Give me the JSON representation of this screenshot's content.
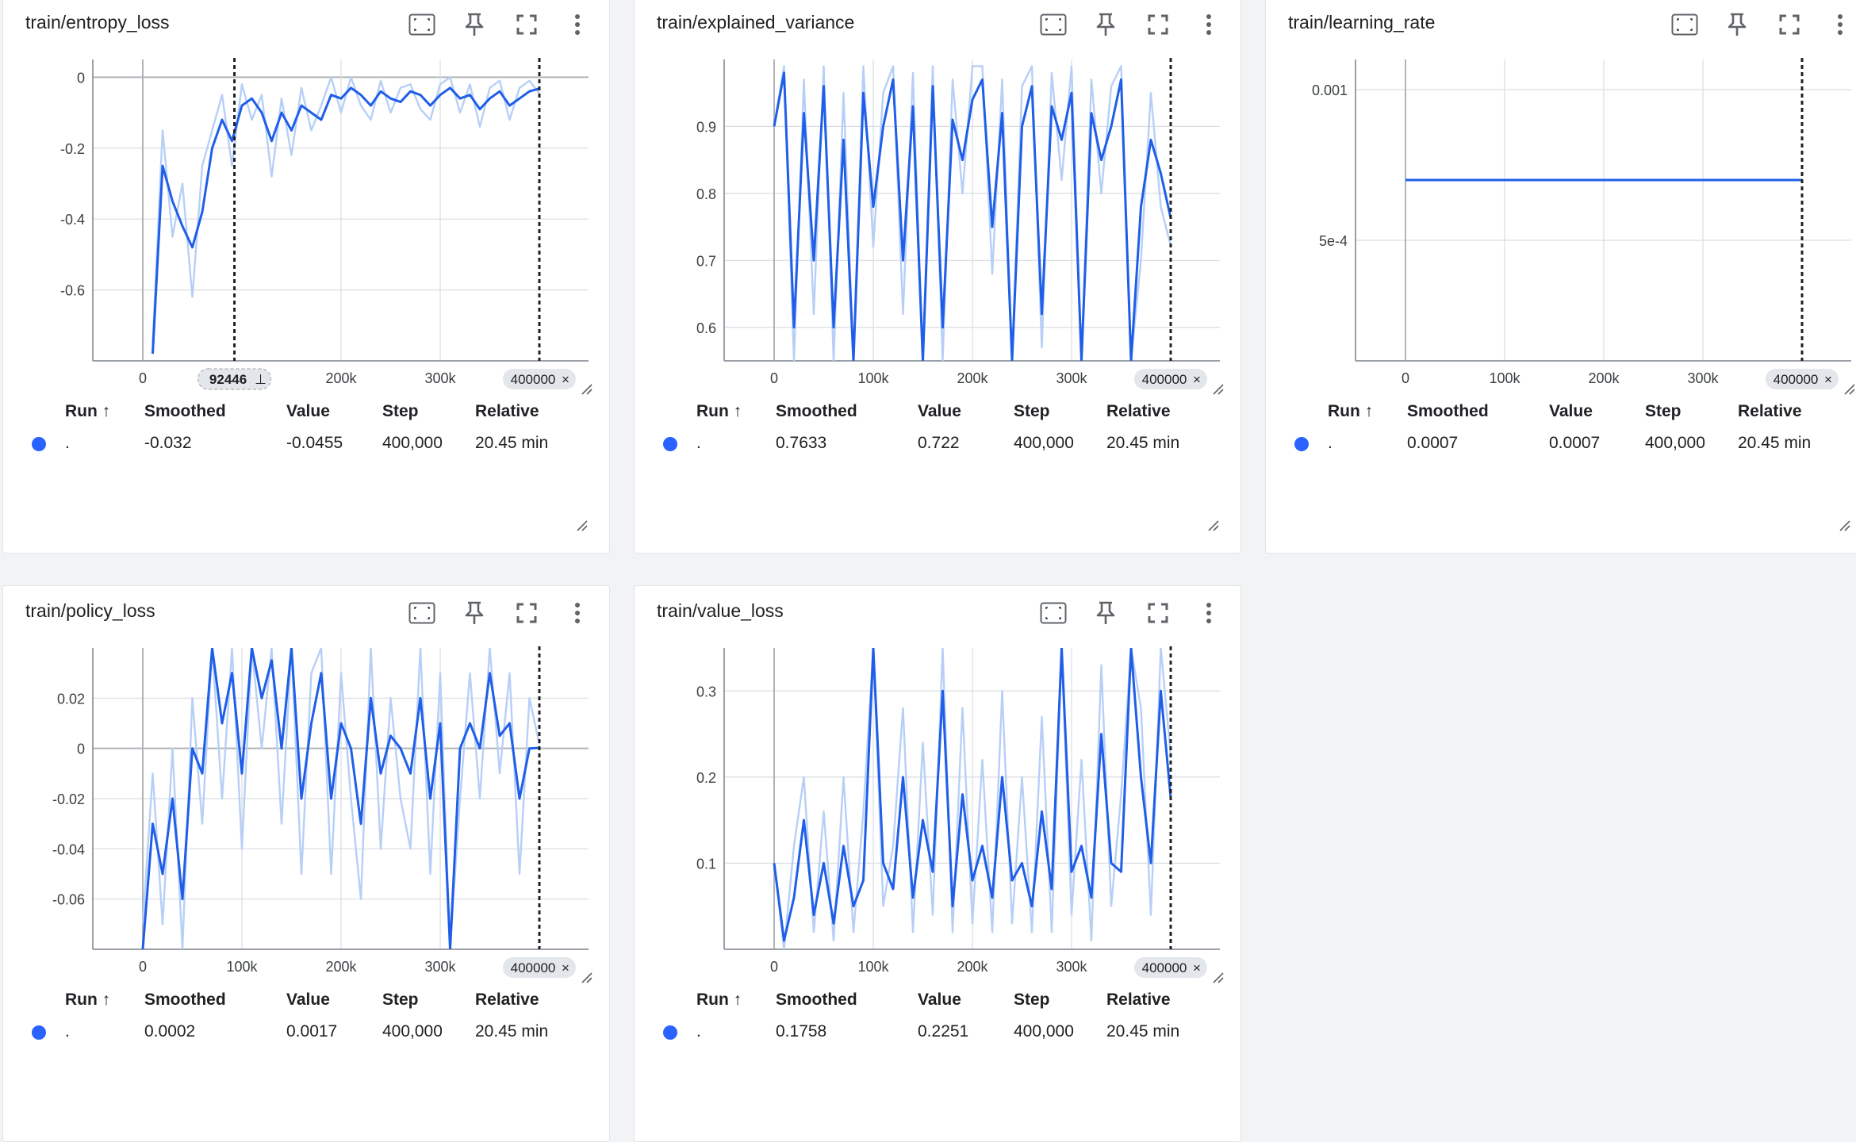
{
  "colors": {
    "smoothed": "#1f5ee8",
    "raw": "#b7cff7",
    "grid": "#dadce0",
    "axis": "#9aa0a6",
    "chip_bg": "#e3e6ea"
  },
  "table_headers": {
    "run": "Run ↑",
    "smoothed": "Smoothed",
    "value": "Value",
    "step": "Step",
    "relative": "Relative"
  },
  "icons": [
    "fit-domain-icon",
    "pin-icon",
    "fullscreen-icon",
    "more-vert-icon",
    "resize-handle-icon"
  ],
  "cards": [
    {
      "title": "train/entropy_loss",
      "row": {
        "run": ".",
        "smoothed": "-0.032",
        "value": "-0.0455",
        "step": "400,000",
        "relative": "20.45 min"
      },
      "x_ticks": [
        {
          "v": 0,
          "label": "0"
        },
        {
          "v": 200000,
          "label": "200k"
        },
        {
          "v": 300000,
          "label": "300k"
        }
      ],
      "y_ticks": [
        {
          "v": 0,
          "label": "0"
        },
        {
          "v": -0.2,
          "label": "-0.2"
        },
        {
          "v": -0.4,
          "label": "-0.4"
        },
        {
          "v": -0.6,
          "label": "-0.6"
        }
      ],
      "markers": [
        {
          "step": 92446,
          "label": "92446",
          "kind": "pin"
        },
        {
          "step": 400000,
          "label": "400000",
          "kind": "close"
        }
      ]
    },
    {
      "title": "train/explained_variance",
      "row": {
        "run": ".",
        "smoothed": "0.7633",
        "value": "0.722",
        "step": "400,000",
        "relative": "20.45 min"
      },
      "x_ticks": [
        {
          "v": 0,
          "label": "0"
        },
        {
          "v": 100000,
          "label": "100k"
        },
        {
          "v": 200000,
          "label": "200k"
        },
        {
          "v": 300000,
          "label": "300k"
        }
      ],
      "y_ticks": [
        {
          "v": 0.9,
          "label": "0.9"
        },
        {
          "v": 0.8,
          "label": "0.8"
        },
        {
          "v": 0.7,
          "label": "0.7"
        },
        {
          "v": 0.6,
          "label": "0.6"
        }
      ],
      "markers": [
        {
          "step": 400000,
          "label": "400000",
          "kind": "close"
        }
      ]
    },
    {
      "title": "train/learning_rate",
      "row": {
        "run": ".",
        "smoothed": "0.0007",
        "value": "0.0007",
        "step": "400,000",
        "relative": "20.45 min"
      },
      "x_ticks": [
        {
          "v": 0,
          "label": "0"
        },
        {
          "v": 100000,
          "label": "100k"
        },
        {
          "v": 200000,
          "label": "200k"
        },
        {
          "v": 300000,
          "label": "300k"
        }
      ],
      "y_ticks": [
        {
          "v": 0.001,
          "label": "0.001"
        },
        {
          "v": 0.0005,
          "label": "5e-4"
        }
      ],
      "markers": [
        {
          "step": 400000,
          "label": "400000",
          "kind": "close"
        }
      ]
    },
    {
      "title": "train/policy_loss",
      "row": {
        "run": ".",
        "smoothed": "0.0002",
        "value": "0.0017",
        "step": "400,000",
        "relative": "20.45 min"
      },
      "x_ticks": [
        {
          "v": 0,
          "label": "0"
        },
        {
          "v": 100000,
          "label": "100k"
        },
        {
          "v": 200000,
          "label": "200k"
        },
        {
          "v": 300000,
          "label": "300k"
        }
      ],
      "y_ticks": [
        {
          "v": 0.02,
          "label": "0.02"
        },
        {
          "v": 0,
          "label": "0"
        },
        {
          "v": -0.02,
          "label": "-0.02"
        },
        {
          "v": -0.04,
          "label": "-0.04"
        },
        {
          "v": -0.06,
          "label": "-0.06"
        }
      ],
      "markers": [
        {
          "step": 400000,
          "label": "400000",
          "kind": "close"
        }
      ]
    },
    {
      "title": "train/value_loss",
      "row": {
        "run": ".",
        "smoothed": "0.1758",
        "value": "0.2251",
        "step": "400,000",
        "relative": "20.45 min"
      },
      "x_ticks": [
        {
          "v": 0,
          "label": "0"
        },
        {
          "v": 100000,
          "label": "100k"
        },
        {
          "v": 200000,
          "label": "200k"
        },
        {
          "v": 300000,
          "label": "300k"
        }
      ],
      "y_ticks": [
        {
          "v": 0.3,
          "label": "0.3"
        },
        {
          "v": 0.2,
          "label": "0.2"
        },
        {
          "v": 0.1,
          "label": "0.1"
        }
      ],
      "markers": [
        {
          "step": 400000,
          "label": "400000",
          "kind": "close"
        }
      ]
    }
  ],
  "chart_data": [
    {
      "type": "line",
      "title": "train/entropy_loss",
      "ylim": [
        -0.8,
        0.05
      ],
      "x": [
        10000,
        20000,
        30000,
        40000,
        50000,
        60000,
        70000,
        80000,
        90000,
        100000,
        110000,
        120000,
        130000,
        140000,
        150000,
        160000,
        170000,
        180000,
        190000,
        200000,
        210000,
        220000,
        230000,
        240000,
        250000,
        260000,
        270000,
        280000,
        290000,
        300000,
        310000,
        320000,
        330000,
        340000,
        350000,
        360000,
        370000,
        380000,
        390000,
        400000
      ],
      "series": [
        {
          "name": "smoothed",
          "values": [
            -0.78,
            -0.25,
            -0.35,
            -0.42,
            -0.48,
            -0.38,
            -0.2,
            -0.12,
            -0.18,
            -0.08,
            -0.06,
            -0.1,
            -0.18,
            -0.1,
            -0.15,
            -0.08,
            -0.1,
            -0.12,
            -0.05,
            -0.06,
            -0.03,
            -0.05,
            -0.08,
            -0.04,
            -0.06,
            -0.07,
            -0.04,
            -0.05,
            -0.08,
            -0.05,
            -0.03,
            -0.06,
            -0.05,
            -0.09,
            -0.06,
            -0.04,
            -0.08,
            -0.06,
            -0.04,
            -0.032
          ]
        },
        {
          "name": "raw",
          "values": [
            -0.75,
            -0.15,
            -0.45,
            -0.3,
            -0.62,
            -0.25,
            -0.15,
            -0.05,
            -0.25,
            -0.02,
            -0.12,
            -0.05,
            -0.28,
            -0.06,
            -0.22,
            -0.03,
            -0.15,
            -0.08,
            0.0,
            -0.1,
            0.0,
            -0.08,
            -0.12,
            -0.01,
            -0.1,
            -0.03,
            -0.02,
            -0.09,
            -0.12,
            -0.02,
            0.0,
            -0.1,
            -0.02,
            -0.14,
            -0.03,
            -0.01,
            -0.12,
            -0.03,
            -0.01,
            -0.0455
          ]
        }
      ]
    },
    {
      "type": "line",
      "title": "train/explained_variance",
      "ylim": [
        0.55,
        1.0
      ],
      "x": [
        0,
        10000,
        20000,
        30000,
        40000,
        50000,
        60000,
        70000,
        80000,
        90000,
        100000,
        110000,
        120000,
        130000,
        140000,
        150000,
        160000,
        170000,
        180000,
        190000,
        200000,
        210000,
        220000,
        230000,
        240000,
        250000,
        260000,
        270000,
        280000,
        290000,
        300000,
        310000,
        320000,
        330000,
        340000,
        350000,
        360000,
        370000,
        380000,
        390000,
        400000
      ],
      "series": [
        {
          "name": "smoothed",
          "values": [
            0.9,
            0.98,
            0.6,
            0.92,
            0.7,
            0.96,
            0.6,
            0.88,
            0.55,
            0.95,
            0.78,
            0.9,
            0.97,
            0.7,
            0.93,
            0.55,
            0.96,
            0.6,
            0.91,
            0.85,
            0.94,
            0.97,
            0.75,
            0.92,
            0.55,
            0.9,
            0.96,
            0.62,
            0.93,
            0.88,
            0.95,
            0.55,
            0.92,
            0.85,
            0.9,
            0.97,
            0.55,
            0.78,
            0.88,
            0.83,
            0.7633
          ]
        },
        {
          "name": "raw",
          "values": [
            0.9,
            0.99,
            0.55,
            0.97,
            0.62,
            0.99,
            0.55,
            0.95,
            0.55,
            0.99,
            0.72,
            0.95,
            0.99,
            0.62,
            0.98,
            0.55,
            0.99,
            0.55,
            0.97,
            0.8,
            0.99,
            0.99,
            0.68,
            0.97,
            0.55,
            0.96,
            0.99,
            0.57,
            0.98,
            0.82,
            0.99,
            0.55,
            0.97,
            0.8,
            0.96,
            0.99,
            0.55,
            0.7,
            0.95,
            0.78,
            0.722
          ]
        }
      ]
    },
    {
      "type": "line",
      "title": "train/learning_rate",
      "ylim": [
        0.0001,
        0.0011
      ],
      "x": [
        0,
        400000
      ],
      "series": [
        {
          "name": "smoothed",
          "values": [
            0.0007,
            0.0007
          ]
        },
        {
          "name": "raw",
          "values": [
            0.0007,
            0.0007
          ]
        }
      ]
    },
    {
      "type": "line",
      "title": "train/policy_loss",
      "ylim": [
        -0.08,
        0.04
      ],
      "x": [
        0,
        10000,
        20000,
        30000,
        40000,
        50000,
        60000,
        70000,
        80000,
        90000,
        100000,
        110000,
        120000,
        130000,
        140000,
        150000,
        160000,
        170000,
        180000,
        190000,
        200000,
        210000,
        220000,
        230000,
        240000,
        250000,
        260000,
        270000,
        280000,
        290000,
        300000,
        310000,
        320000,
        330000,
        340000,
        350000,
        360000,
        370000,
        380000,
        390000,
        400000
      ],
      "series": [
        {
          "name": "smoothed",
          "values": [
            -0.08,
            -0.03,
            -0.05,
            -0.02,
            -0.06,
            0.0,
            -0.01,
            0.04,
            0.01,
            0.03,
            -0.01,
            0.04,
            0.02,
            0.035,
            0.0,
            0.04,
            -0.02,
            0.01,
            0.03,
            -0.02,
            0.01,
            0.0,
            -0.03,
            0.02,
            -0.01,
            0.005,
            0.0,
            -0.01,
            0.02,
            -0.02,
            0.01,
            -0.08,
            0.0,
            0.01,
            0.0,
            0.03,
            0.005,
            0.01,
            -0.02,
            0.0,
            0.0002
          ]
        },
        {
          "name": "raw",
          "values": [
            -0.07,
            -0.01,
            -0.07,
            0.0,
            -0.08,
            0.02,
            -0.03,
            0.04,
            -0.02,
            0.04,
            -0.04,
            0.04,
            0.0,
            0.04,
            -0.03,
            0.04,
            -0.05,
            0.03,
            0.04,
            -0.05,
            0.03,
            -0.02,
            -0.06,
            0.04,
            -0.04,
            0.02,
            -0.02,
            -0.04,
            0.04,
            -0.05,
            0.03,
            -0.08,
            -0.02,
            0.03,
            -0.02,
            0.04,
            -0.01,
            0.03,
            -0.05,
            0.02,
            0.0017
          ]
        }
      ]
    },
    {
      "type": "line",
      "title": "train/value_loss",
      "ylim": [
        0.0,
        0.35
      ],
      "x": [
        0,
        10000,
        20000,
        30000,
        40000,
        50000,
        60000,
        70000,
        80000,
        90000,
        100000,
        110000,
        120000,
        130000,
        140000,
        150000,
        160000,
        170000,
        180000,
        190000,
        200000,
        210000,
        220000,
        230000,
        240000,
        250000,
        260000,
        270000,
        280000,
        290000,
        300000,
        310000,
        320000,
        330000,
        340000,
        350000,
        360000,
        370000,
        380000,
        390000,
        400000
      ],
      "series": [
        {
          "name": "smoothed",
          "values": [
            0.1,
            0.01,
            0.06,
            0.15,
            0.04,
            0.1,
            0.03,
            0.12,
            0.05,
            0.08,
            0.35,
            0.1,
            0.07,
            0.2,
            0.06,
            0.15,
            0.09,
            0.3,
            0.05,
            0.18,
            0.08,
            0.12,
            0.06,
            0.2,
            0.08,
            0.1,
            0.05,
            0.16,
            0.07,
            0.35,
            0.09,
            0.12,
            0.06,
            0.25,
            0.1,
            0.09,
            0.35,
            0.2,
            0.1,
            0.3,
            0.1758
          ]
        },
        {
          "name": "raw",
          "values": [
            0.1,
            0.0,
            0.12,
            0.2,
            0.02,
            0.16,
            0.01,
            0.2,
            0.02,
            0.16,
            0.35,
            0.05,
            0.12,
            0.28,
            0.02,
            0.24,
            0.04,
            0.35,
            0.02,
            0.28,
            0.03,
            0.22,
            0.02,
            0.3,
            0.03,
            0.2,
            0.02,
            0.27,
            0.02,
            0.35,
            0.04,
            0.22,
            0.01,
            0.33,
            0.05,
            0.18,
            0.35,
            0.28,
            0.04,
            0.35,
            0.2251
          ]
        }
      ]
    }
  ]
}
